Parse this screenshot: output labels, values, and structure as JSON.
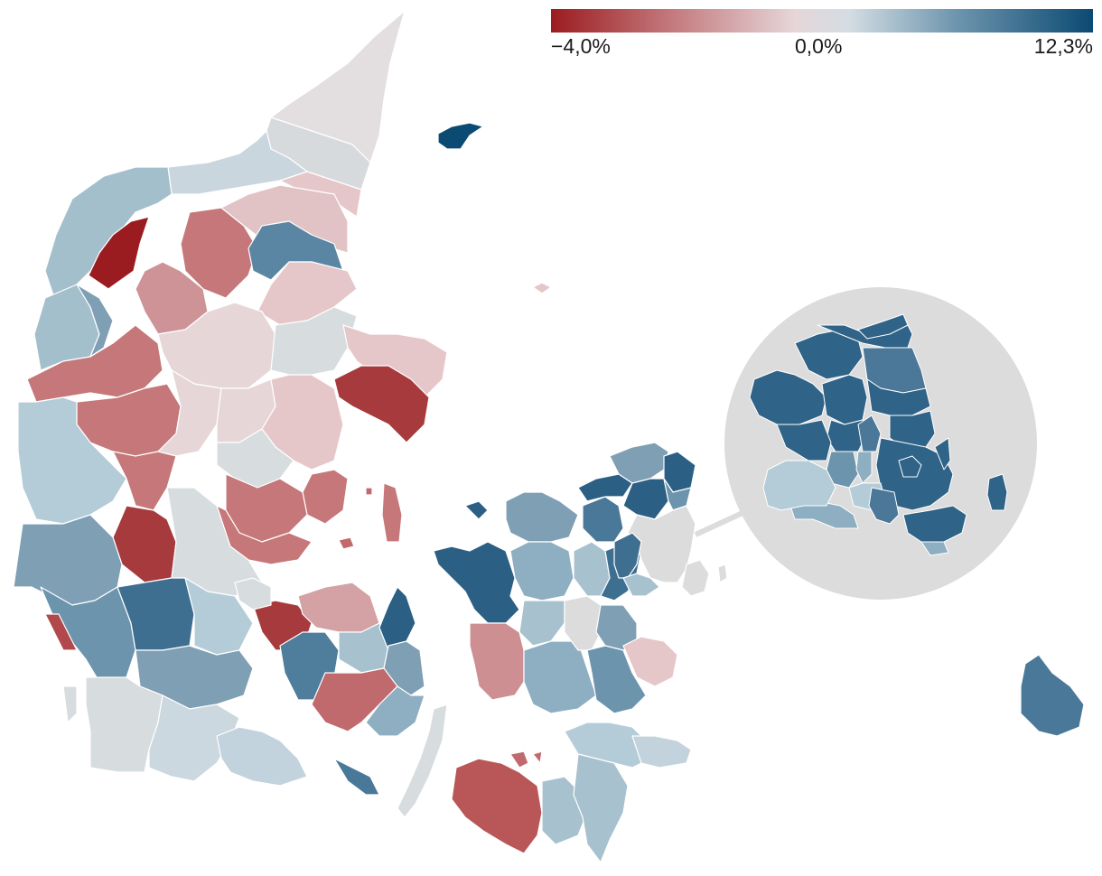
{
  "legend": {
    "min_label": "−4,0%",
    "mid_label": "0,0%",
    "max_label": "12,3%",
    "min_value": -4.0,
    "mid_value": 0.0,
    "max_value": 12.3,
    "color_stops": [
      "#9b1c20",
      "#c07074",
      "#e6d6d8",
      "#d3dde3",
      "#6d94ad",
      "#0b4a73"
    ]
  },
  "colors": {
    "land_neutral": "#dcdcdc",
    "inset_background": "#dcdcdc",
    "border": "#ffffff"
  }
}
